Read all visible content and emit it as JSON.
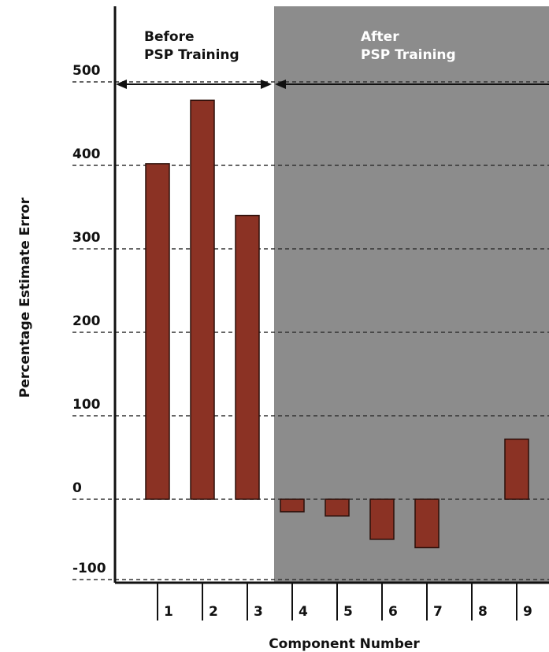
{
  "chart_data": {
    "type": "bar",
    "title": "",
    "xlabel": "Component Number",
    "ylabel": "Percentage Estimate Error",
    "categories": [
      "1",
      "2",
      "3",
      "4",
      "5",
      "6",
      "7",
      "8",
      "9"
    ],
    "values": [
      402,
      478,
      340,
      -15,
      -20,
      -48,
      -58,
      null,
      72
    ],
    "ylim": [
      -100,
      500
    ],
    "yticks": [
      500,
      400,
      300,
      200,
      100,
      0,
      -100
    ],
    "ytick_labels": [
      "500",
      "400",
      "300",
      "200",
      "100",
      "0",
      "-100"
    ],
    "grid": "horizontal dashed",
    "regions": [
      {
        "label_line1": "Before",
        "label_line2": "PSP Training",
        "components": [
          "1",
          "2",
          "3"
        ]
      },
      {
        "label_line1": "After",
        "label_line2": "PSP Training",
        "components": [
          "4",
          "5",
          "6",
          "7",
          "8",
          "9"
        ]
      }
    ],
    "colors": {
      "bar": "#8b3224",
      "after_background": "#8c8c8c",
      "before_background": "#ffffff",
      "after_label": "#ffffff",
      "before_label": "#111111"
    }
  }
}
